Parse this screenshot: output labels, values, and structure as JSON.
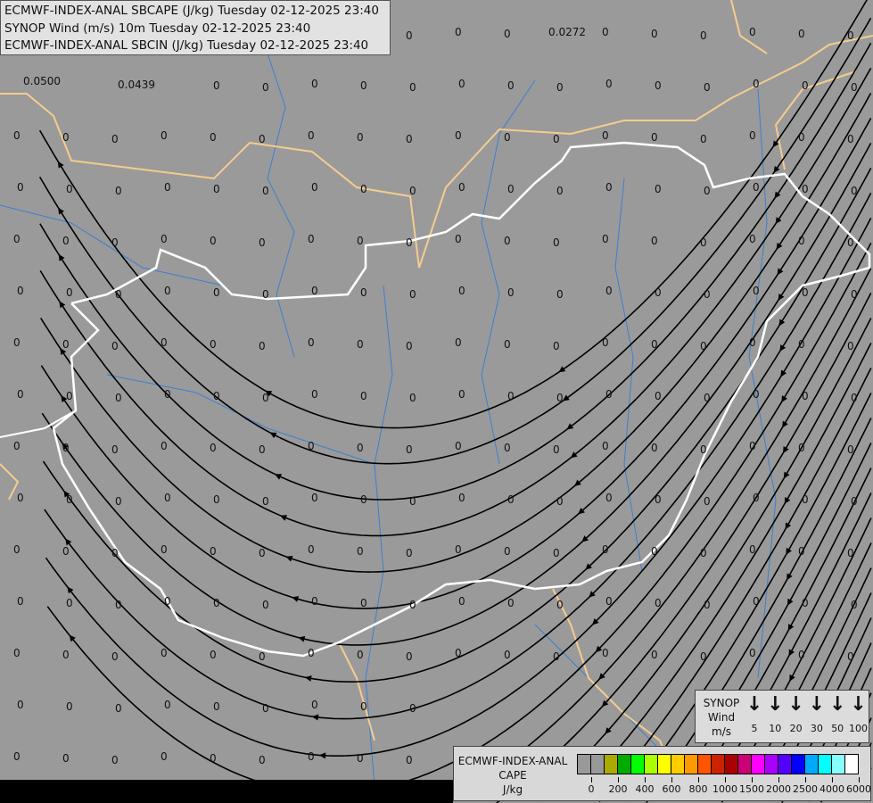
{
  "header": {
    "lines": [
      "ECMWF-INDEX-ANAL SBCAPE (J/kg) Tuesday 02-12-2025 23:40",
      "SYNOP Wind (m/s) 10m Tuesday 02-12-2025 23:40",
      "ECMWF-INDEX-ANAL SBCIN (J/kg) Tuesday 02-12-2025 23:40"
    ]
  },
  "map": {
    "background_color": "#9a9a9a",
    "country_border_color": "#ffffff",
    "neighbor_border_color": "#f5cc8e",
    "river_color": "#3d7fd0",
    "streamline_color": "#000000",
    "default_value": "0",
    "special_values": [
      "0.0500",
      "0.0439",
      "0.0272"
    ]
  },
  "synop_legend": {
    "title": [
      "SYNOP",
      "Wind",
      "m/s"
    ],
    "arrow_icon": "↓",
    "speeds": [
      "5",
      "10",
      "20",
      "30",
      "50",
      "100"
    ]
  },
  "cape_legend": {
    "title": [
      "ECMWF-INDEX-ANAL",
      "CAPE",
      "J/kg"
    ],
    "colors": [
      "#999999",
      "#999999",
      "#aaaa00",
      "#00aa00",
      "#00ff00",
      "#aaff00",
      "#ffff00",
      "#ffcc00",
      "#ff9900",
      "#ff5500",
      "#cc2200",
      "#aa0000",
      "#cc0077",
      "#ff00ff",
      "#aa00ff",
      "#5500ff",
      "#0000ff",
      "#00aaff",
      "#00ffff",
      "#88ffff",
      "#ffffff"
    ],
    "ticks": [
      "0",
      "200",
      "400",
      "600",
      "800",
      "1000",
      "1500",
      "2000",
      "2500",
      "4000",
      "6000"
    ]
  }
}
